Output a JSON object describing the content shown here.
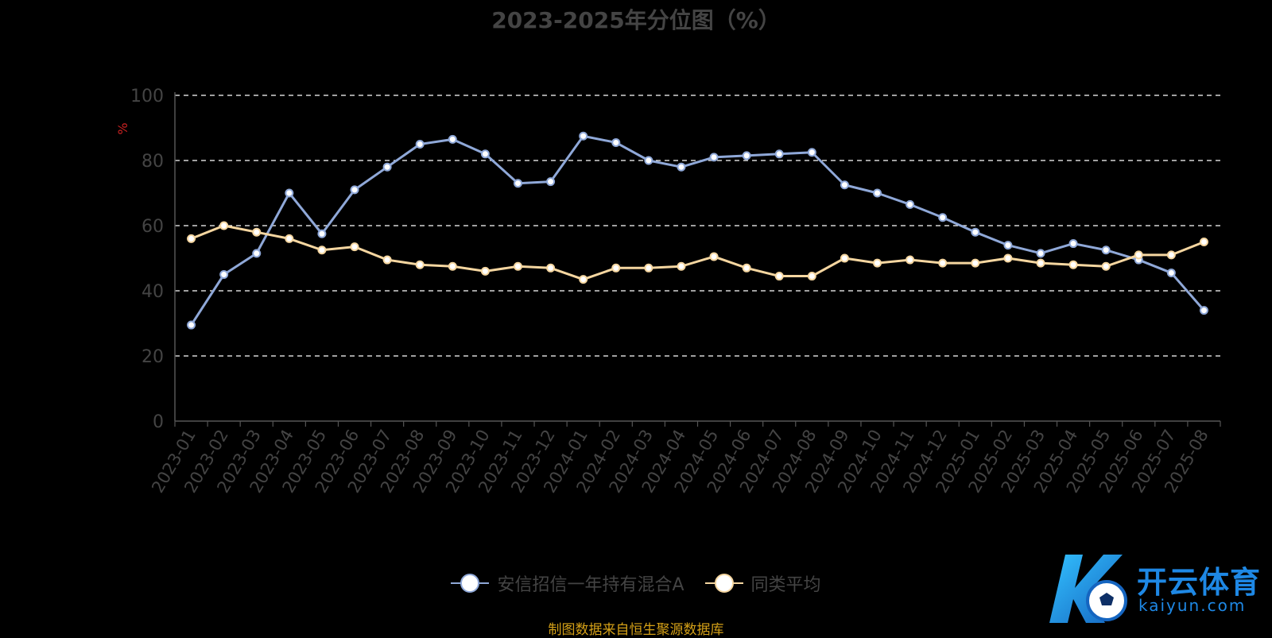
{
  "chart_data": {
    "type": "line",
    "title": "2023-2025年分位图（%）",
    "ylabel": "%",
    "ylim": [
      0,
      100
    ],
    "yticks": [
      0,
      20,
      40,
      60,
      80,
      100
    ],
    "grid": true,
    "legend_position": "bottom-center",
    "categories": [
      "2023-01",
      "2023-02",
      "2023-03",
      "2023-04",
      "2023-05",
      "2023-06",
      "2023-07",
      "2023-08",
      "2023-09",
      "2023-10",
      "2023-11",
      "2023-12",
      "2024-01",
      "2024-02",
      "2024-03",
      "2024-04",
      "2024-05",
      "2024-06",
      "2024-07",
      "2024-08",
      "2024-09",
      "2024-10",
      "2024-11",
      "2024-12",
      "2025-01",
      "2025-02",
      "2025-03",
      "2025-04",
      "2025-05",
      "2025-06",
      "2025-07",
      "2025-08"
    ],
    "series": [
      {
        "name": "安信招信一年持有混合A",
        "color": "#8fa8d8",
        "values": [
          29.5,
          45,
          51.5,
          70,
          57.5,
          71,
          78,
          85,
          86.5,
          82,
          73,
          73.5,
          87.5,
          85.5,
          80,
          78,
          81,
          81.5,
          82,
          82.5,
          72.5,
          70,
          66.5,
          62.5,
          58,
          54,
          51.5,
          54.5,
          52.5,
          49.5,
          45.5,
          34
        ]
      },
      {
        "name": "同类平均",
        "color": "#f5d6a0",
        "values": [
          56,
          60,
          58,
          56,
          52.5,
          53.5,
          49.5,
          48,
          47.5,
          46,
          47.5,
          47,
          43.5,
          47,
          47,
          47.5,
          50.5,
          47,
          44.5,
          44.5,
          50,
          48.5,
          49.5,
          48.5,
          48.5,
          50,
          48.5,
          48,
          47.5,
          51,
          51,
          55
        ]
      }
    ]
  },
  "legend": {
    "items": [
      {
        "label": "安信招信一年持有混合A",
        "color": "#8fa8d8"
      },
      {
        "label": "同类平均",
        "color": "#f5d6a0"
      }
    ]
  },
  "source_note": "制图数据来自恒生聚源数据库",
  "watermark": {
    "text": "开云体育",
    "sub": "kaiyun.com"
  }
}
